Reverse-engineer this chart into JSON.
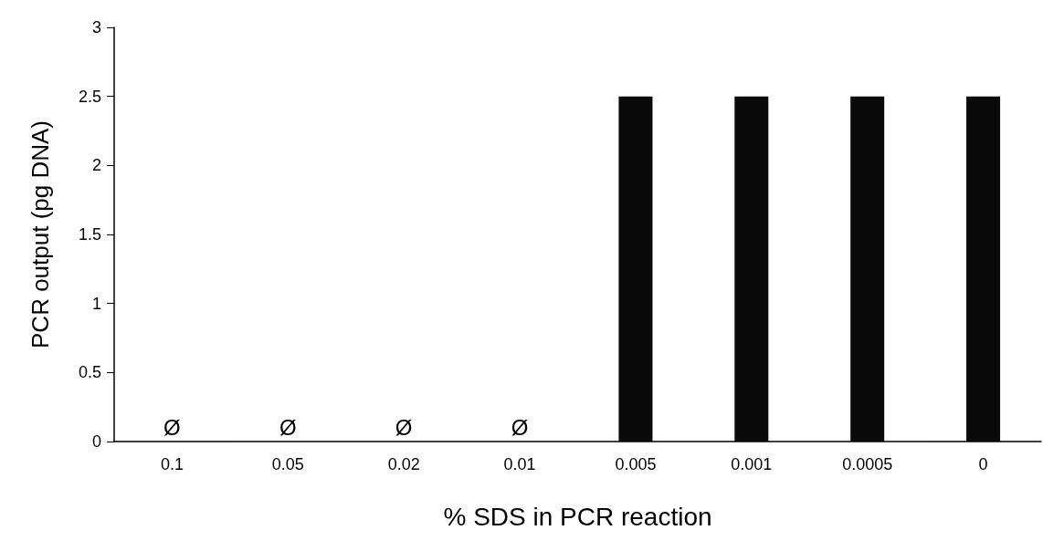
{
  "chart_data": {
    "type": "bar",
    "xlabel": "% SDS in PCR reaction",
    "ylabel": "PCR output (pg DNA)",
    "categories": [
      "0.1",
      "0.05",
      "0.02",
      "0.01",
      "0.005",
      "0.001",
      "0.0005",
      "0"
    ],
    "values": [
      null,
      null,
      null,
      null,
      2.5,
      2.5,
      2.5,
      2.5
    ],
    "color": "#0a0a0a",
    "ylim": [
      0,
      3
    ],
    "yticks": [
      0,
      0.5,
      1,
      1.5,
      2,
      2.5,
      3
    ],
    "grid": false,
    "annotations": [
      "Ø",
      "Ø",
      "Ø",
      "Ø"
    ]
  }
}
